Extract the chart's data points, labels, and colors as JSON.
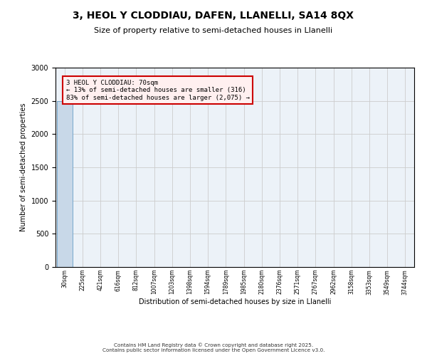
{
  "title": "3, HEOL Y CLODDIAU, DAFEN, LLANELLI, SA14 8QX",
  "subtitle": "Size of property relative to semi-detached houses in Llanelli",
  "xlabel": "Distribution of semi-detached houses by size in Llanelli",
  "ylabel": "Number of semi-detached properties",
  "property_label": "3 HEOL Y CLODDIAU: 70sqm",
  "pct_smaller": 13,
  "count_smaller": 316,
  "pct_larger": 83,
  "count_larger": 2075,
  "footer1": "Contains HM Land Registry data © Crown copyright and database right 2025.",
  "footer2": "Contains public sector information licensed under the Open Government Licence v3.0.",
  "bin_labels": [
    "30sqm",
    "225sqm",
    "421sqm",
    "616sqm",
    "812sqm",
    "1007sqm",
    "1203sqm",
    "1398sqm",
    "1594sqm",
    "1789sqm",
    "1985sqm",
    "2180sqm",
    "2376sqm",
    "2571sqm",
    "2767sqm",
    "2962sqm",
    "3158sqm",
    "3353sqm",
    "3549sqm",
    "3744sqm"
  ],
  "bar_heights": [
    2500,
    5,
    2,
    1,
    1,
    0,
    0,
    0,
    0,
    0,
    0,
    0,
    0,
    0,
    0,
    0,
    0,
    0,
    0,
    0
  ],
  "bar_color": "#c8d8e8",
  "bar_edge_color": "#5090c0",
  "ylim": [
    0,
    3000
  ],
  "yticks": [
    0,
    500,
    1000,
    1500,
    2000,
    2500,
    3000
  ],
  "grid_color": "#cccccc",
  "bg_color": "#ecf2f8"
}
